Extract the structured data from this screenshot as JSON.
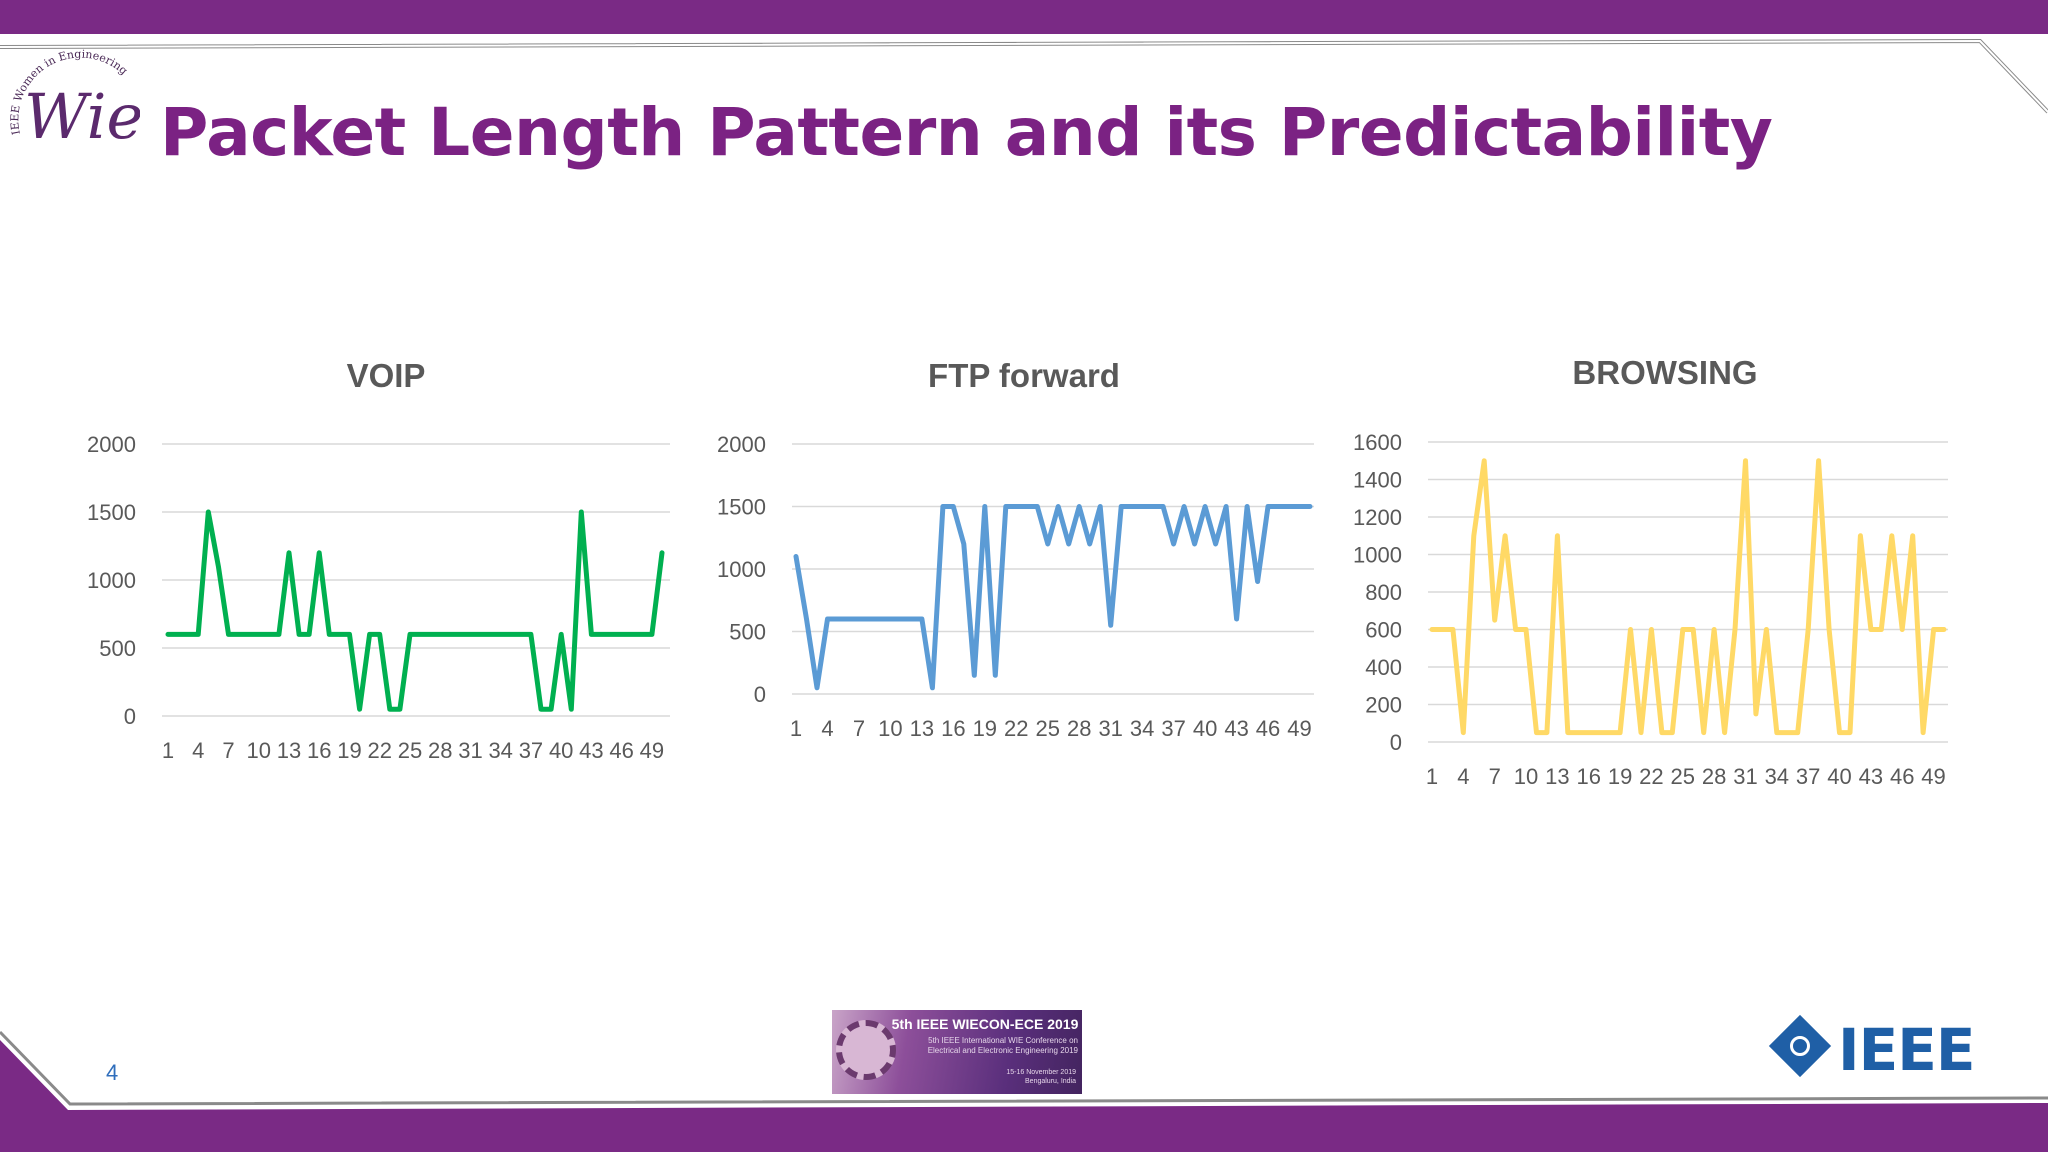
{
  "slide": {
    "title": "Packet Length Pattern and its Predictability",
    "page_number": "4",
    "logo_text": "Wie",
    "logo_ring_text": "IEEE Women in Engineering",
    "conference": {
      "title": "5th IEEE WIECON-ECE 2019",
      "subtitle": "5th IEEE International WIE Conference on\nElectrical and Electronic Engineering 2019",
      "dates": "15-16 November 2019\nBengaluru, India"
    },
    "ieee_logo_text": "IEEE",
    "colors": {
      "accent": "#7a2a85",
      "title": "#7b2283",
      "voip": "#00b050",
      "ftp": "#5b9bd5",
      "browsing": "#ffd966"
    }
  },
  "chart_data": [
    {
      "type": "line",
      "title": "VOIP",
      "ylim": [
        0,
        2000
      ],
      "yticks": [
        0,
        500,
        1000,
        1500,
        2000
      ],
      "xtick_labels": [
        "1",
        "4",
        "7",
        "10",
        "13",
        "16",
        "19",
        "22",
        "25",
        "28",
        "31",
        "34",
        "37",
        "40",
        "43",
        "46",
        "49"
      ],
      "x": [
        1,
        2,
        3,
        4,
        5,
        6,
        7,
        8,
        9,
        10,
        11,
        12,
        13,
        14,
        15,
        16,
        17,
        18,
        19,
        20,
        21,
        22,
        23,
        24,
        25,
        26,
        27,
        28,
        29,
        30,
        31,
        32,
        33,
        34,
        35,
        36,
        37,
        38,
        39,
        40,
        41,
        42,
        43,
        44,
        45,
        46,
        47,
        48,
        49,
        50
      ],
      "series": [
        {
          "name": "VOIP",
          "color": "#00b050",
          "values": [
            600,
            600,
            600,
            600,
            1500,
            1100,
            600,
            600,
            600,
            600,
            600,
            600,
            1200,
            600,
            600,
            1200,
            600,
            600,
            600,
            50,
            600,
            600,
            50,
            50,
            600,
            600,
            600,
            600,
            600,
            600,
            600,
            600,
            600,
            600,
            600,
            600,
            600,
            50,
            50,
            600,
            50,
            1500,
            600,
            600,
            600,
            600,
            600,
            600,
            600,
            1200
          ]
        }
      ],
      "grid": true
    },
    {
      "type": "line",
      "title": "FTP forward",
      "ylim": [
        0,
        2000
      ],
      "yticks": [
        0,
        500,
        1000,
        1500,
        2000
      ],
      "xtick_labels": [
        "1",
        "4",
        "7",
        "10",
        "13",
        "16",
        "19",
        "22",
        "25",
        "28",
        "31",
        "34",
        "37",
        "40",
        "43",
        "46",
        "49"
      ],
      "x": [
        1,
        2,
        3,
        4,
        5,
        6,
        7,
        8,
        9,
        10,
        11,
        12,
        13,
        14,
        15,
        16,
        17,
        18,
        19,
        20,
        21,
        22,
        23,
        24,
        25,
        26,
        27,
        28,
        29,
        30,
        31,
        32,
        33,
        34,
        35,
        36,
        37,
        38,
        39,
        40,
        41,
        42,
        43,
        44,
        45,
        46,
        47,
        48,
        49,
        50
      ],
      "series": [
        {
          "name": "FTP forward",
          "color": "#5b9bd5",
          "values": [
            1100,
            600,
            50,
            600,
            600,
            600,
            600,
            600,
            600,
            600,
            600,
            600,
            600,
            50,
            1500,
            1500,
            1200,
            150,
            1500,
            150,
            1500,
            1500,
            1500,
            1500,
            1200,
            1500,
            1200,
            1500,
            1200,
            1500,
            550,
            1500,
            1500,
            1500,
            1500,
            1500,
            1200,
            1500,
            1200,
            1500,
            1200,
            1500,
            600,
            1500,
            900,
            1500,
            1500,
            1500,
            1500,
            1500
          ]
        }
      ],
      "grid": true
    },
    {
      "type": "line",
      "title": "BROWSING",
      "ylim": [
        0,
        1600
      ],
      "yticks": [
        0,
        200,
        400,
        600,
        800,
        1000,
        1200,
        1400,
        1600
      ],
      "xtick_labels": [
        "1",
        "4",
        "7",
        "10",
        "13",
        "16",
        "19",
        "22",
        "25",
        "28",
        "31",
        "34",
        "37",
        "40",
        "43",
        "46",
        "49"
      ],
      "x": [
        1,
        2,
        3,
        4,
        5,
        6,
        7,
        8,
        9,
        10,
        11,
        12,
        13,
        14,
        15,
        16,
        17,
        18,
        19,
        20,
        21,
        22,
        23,
        24,
        25,
        26,
        27,
        28,
        29,
        30,
        31,
        32,
        33,
        34,
        35,
        36,
        37,
        38,
        39,
        40,
        41,
        42,
        43,
        44,
        45,
        46,
        47,
        48,
        49,
        50
      ],
      "series": [
        {
          "name": "BROWSING",
          "color": "#ffd966",
          "values": [
            600,
            600,
            600,
            50,
            1100,
            1500,
            650,
            1100,
            600,
            600,
            50,
            50,
            1100,
            50,
            50,
            50,
            50,
            50,
            50,
            600,
            50,
            600,
            50,
            50,
            600,
            600,
            50,
            600,
            50,
            600,
            1500,
            150,
            600,
            50,
            50,
            50,
            600,
            1500,
            600,
            50,
            50,
            1100,
            600,
            600,
            1100,
            600,
            1100,
            50,
            600,
            600
          ]
        }
      ],
      "grid": true
    }
  ]
}
